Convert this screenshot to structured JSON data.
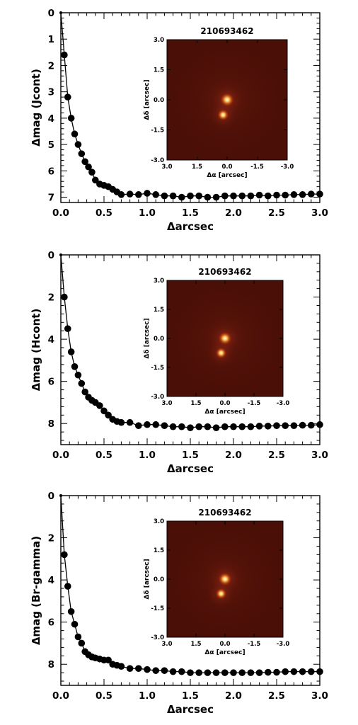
{
  "chart_data": [
    {
      "type": "scatter",
      "title": "",
      "xlabel": "Δarcsec",
      "ylabel": "Δmag (Jcont)",
      "xlim": [
        0.0,
        3.0
      ],
      "ylim": [
        7.2,
        0
      ],
      "y_inverted": true,
      "xticks": [
        "0.0",
        "0.5",
        "1.0",
        "1.5",
        "2.0",
        "2.5",
        "3.0"
      ],
      "yticks": [
        "0",
        "1",
        "2",
        "3",
        "4",
        "5",
        "6",
        "7"
      ],
      "ytick_values": [
        0,
        1,
        2,
        3,
        4,
        5,
        6,
        7
      ],
      "grid": false,
      "legend": "none",
      "series": [
        {
          "style": "filled black circles joined by a line",
          "x": [
            0.0,
            0.04,
            0.08,
            0.12,
            0.16,
            0.2,
            0.24,
            0.28,
            0.32,
            0.36,
            0.4,
            0.45,
            0.5,
            0.55,
            0.6,
            0.65,
            0.7,
            0.8,
            0.9,
            1.0,
            1.1,
            1.2,
            1.3,
            1.4,
            1.5,
            1.6,
            1.7,
            1.8,
            1.9,
            2.0,
            2.1,
            2.2,
            2.3,
            2.4,
            2.5,
            2.6,
            2.7,
            2.8,
            2.9,
            3.0
          ],
          "y": [
            0.0,
            1.6,
            3.2,
            4.0,
            4.6,
            5.0,
            5.35,
            5.65,
            5.85,
            6.05,
            6.35,
            6.5,
            6.55,
            6.6,
            6.7,
            6.8,
            6.9,
            6.88,
            6.9,
            6.85,
            6.9,
            6.95,
            6.95,
            7.0,
            6.95,
            6.95,
            7.0,
            7.0,
            6.95,
            6.95,
            6.95,
            6.95,
            6.92,
            6.95,
            6.92,
            6.92,
            6.9,
            6.9,
            6.88,
            6.88
          ]
        }
      ],
      "inset": {
        "title": "210693462",
        "xlabel": "Δα [arcsec]",
        "ylabel": "Δδ [arcsec]",
        "xticks": [
          "3.0",
          "1.5",
          "0.0",
          "-1.5",
          "-3.0"
        ],
        "yticks": [
          "3.0",
          "1.5",
          "0.0",
          "-1.5",
          "-3.0"
        ],
        "xlim": [
          3.0,
          -3.0
        ],
        "ylim": [
          -3.0,
          3.0
        ],
        "sources": [
          {
            "dx": 0.0,
            "dy": 0.0,
            "brightness": 1.0
          },
          {
            "dx": 0.2,
            "dy": -0.75,
            "brightness": 0.6
          }
        ]
      }
    },
    {
      "type": "scatter",
      "title": "",
      "xlabel": "Δarcsec",
      "ylabel": "Δmag (Hcont)",
      "xlim": [
        0.0,
        3.0
      ],
      "ylim": [
        9.0,
        0
      ],
      "y_inverted": true,
      "xticks": [
        "0.0",
        "0.5",
        "1.0",
        "1.5",
        "2.0",
        "2.5",
        "3.0"
      ],
      "yticks": [
        "0",
        "2",
        "4",
        "6",
        "8"
      ],
      "ytick_values": [
        0,
        2,
        4,
        6,
        8
      ],
      "grid": false,
      "legend": "none",
      "series": [
        {
          "style": "filled black circles joined by a line",
          "x": [
            0.0,
            0.04,
            0.08,
            0.12,
            0.16,
            0.2,
            0.24,
            0.28,
            0.32,
            0.36,
            0.4,
            0.45,
            0.5,
            0.55,
            0.6,
            0.65,
            0.7,
            0.8,
            0.9,
            1.0,
            1.1,
            1.2,
            1.3,
            1.4,
            1.5,
            1.6,
            1.7,
            1.8,
            1.9,
            2.0,
            2.1,
            2.2,
            2.3,
            2.4,
            2.5,
            2.6,
            2.7,
            2.8,
            2.9,
            3.0
          ],
          "y": [
            0.0,
            2.0,
            3.5,
            4.6,
            5.3,
            5.7,
            6.1,
            6.5,
            6.75,
            6.9,
            7.0,
            7.15,
            7.4,
            7.6,
            7.8,
            7.9,
            7.95,
            7.95,
            8.1,
            8.05,
            8.05,
            8.1,
            8.15,
            8.15,
            8.2,
            8.15,
            8.15,
            8.2,
            8.15,
            8.15,
            8.15,
            8.15,
            8.12,
            8.12,
            8.1,
            8.1,
            8.1,
            8.08,
            8.08,
            8.05
          ]
        }
      ],
      "inset": {
        "title": "210693462",
        "xlabel": "Δα [arcsec]",
        "ylabel": "Δδ [arcsec]",
        "xticks": [
          "3.0",
          "1.5",
          "0.0",
          "-1.5",
          "-3.0"
        ],
        "yticks": [
          "3.0",
          "1.5",
          "0.0",
          "-1.5",
          "-3.0"
        ],
        "xlim": [
          3.0,
          -3.0
        ],
        "ylim": [
          -3.0,
          3.0
        ],
        "sources": [
          {
            "dx": 0.0,
            "dy": 0.0,
            "brightness": 1.0
          },
          {
            "dx": 0.2,
            "dy": -0.75,
            "brightness": 0.6
          }
        ]
      }
    },
    {
      "type": "scatter",
      "title": "",
      "xlabel": "Δarcsec",
      "ylabel": "Δmag (Br-gamma)",
      "xlim": [
        0.0,
        3.0
      ],
      "ylim": [
        9.0,
        0
      ],
      "y_inverted": true,
      "xticks": [
        "0.0",
        "0.5",
        "1.0",
        "1.5",
        "2.0",
        "2.5",
        "3.0"
      ],
      "yticks": [
        "0",
        "2",
        "4",
        "6",
        "8"
      ],
      "ytick_values": [
        0,
        2,
        4,
        6,
        8
      ],
      "grid": false,
      "legend": "none",
      "series": [
        {
          "style": "filled black circles joined by a line",
          "x": [
            0.0,
            0.04,
            0.08,
            0.12,
            0.16,
            0.2,
            0.24,
            0.28,
            0.32,
            0.36,
            0.4,
            0.45,
            0.5,
            0.55,
            0.6,
            0.65,
            0.7,
            0.8,
            0.9,
            1.0,
            1.1,
            1.2,
            1.3,
            1.4,
            1.5,
            1.6,
            1.7,
            1.8,
            1.9,
            2.0,
            2.1,
            2.2,
            2.3,
            2.4,
            2.5,
            2.6,
            2.7,
            2.8,
            2.9,
            3.0
          ],
          "y": [
            0.0,
            2.8,
            4.3,
            5.5,
            6.1,
            6.7,
            7.0,
            7.4,
            7.55,
            7.65,
            7.7,
            7.75,
            7.8,
            7.8,
            8.0,
            8.05,
            8.1,
            8.2,
            8.2,
            8.25,
            8.3,
            8.3,
            8.35,
            8.35,
            8.4,
            8.4,
            8.4,
            8.4,
            8.4,
            8.4,
            8.4,
            8.4,
            8.4,
            8.38,
            8.38,
            8.35,
            8.35,
            8.35,
            8.35,
            8.35
          ]
        }
      ],
      "inset": {
        "title": "210693462",
        "xlabel": "Δα [arcsec]",
        "ylabel": "Δδ [arcsec]",
        "xticks": [
          "3.0",
          "1.5",
          "0.0",
          "-1.5",
          "-3.0"
        ],
        "yticks": [
          "3.0",
          "1.5",
          "0.0",
          "-1.5",
          "-3.0"
        ],
        "xlim": [
          3.0,
          -3.0
        ],
        "ylim": [
          -3.0,
          3.0
        ],
        "sources": [
          {
            "dx": 0.0,
            "dy": 0.0,
            "brightness": 1.0
          },
          {
            "dx": 0.2,
            "dy": -0.75,
            "brightness": 0.6
          }
        ]
      }
    }
  ]
}
